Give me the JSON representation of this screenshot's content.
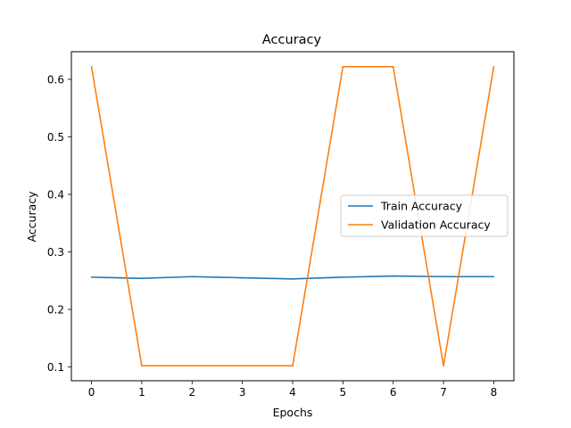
{
  "chart_data": {
    "type": "line",
    "title": "Accuracy",
    "xlabel": "Epochs",
    "ylabel": "Accuracy",
    "x": [
      0,
      1,
      2,
      3,
      4,
      5,
      6,
      7,
      8
    ],
    "xticks": [
      "0",
      "1",
      "2",
      "3",
      "4",
      "5",
      "6",
      "7",
      "8"
    ],
    "yticks": [
      "0.1",
      "0.2",
      "0.3",
      "0.4",
      "0.5",
      "0.6"
    ],
    "xlim": [
      -0.4,
      8.4
    ],
    "ylim": [
      0.076,
      0.648
    ],
    "grid": false,
    "legend_position": "center-right",
    "series": [
      {
        "name": "Train Accuracy",
        "color": "#1f77b4",
        "values": [
          0.256,
          0.254,
          0.257,
          0.255,
          0.253,
          0.256,
          0.258,
          0.257,
          0.257
        ]
      },
      {
        "name": "Validation Accuracy",
        "color": "#ff7f0e",
        "values": [
          0.622,
          0.102,
          0.102,
          0.102,
          0.102,
          0.622,
          0.622,
          0.102,
          0.622
        ]
      }
    ]
  }
}
